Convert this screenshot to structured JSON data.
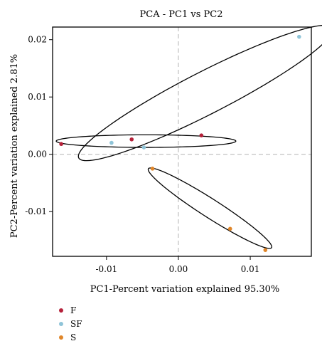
{
  "chart_data": {
    "type": "scatter",
    "title": "PCA - PC1 vs PC2",
    "xlabel": "PC1-Percent variation explained 95.30%",
    "ylabel": "PC2-Percent variation explained 2.81%",
    "xlim": [
      -0.0175,
      0.0185
    ],
    "ylim": [
      -0.0178,
      0.0222
    ],
    "xticks": [
      -0.01,
      0.0,
      0.01
    ],
    "xtick_labels": [
      "-0.01",
      "0.00",
      "0.01"
    ],
    "yticks": [
      -0.01,
      0.0,
      0.01,
      0.02
    ],
    "ytick_labels": [
      "-0.01",
      "0.00",
      "0.01",
      "0.02"
    ],
    "grid": false,
    "reference_lines": {
      "x": 0.0,
      "y": 0.0,
      "style": "dashed"
    },
    "legend_position": "bottom-left",
    "series": [
      {
        "name": "F",
        "color": "#b5213a",
        "points": [
          {
            "x": -0.0163,
            "y": 0.0018
          },
          {
            "x": -0.0065,
            "y": 0.0026
          },
          {
            "x": 0.0032,
            "y": 0.0033
          }
        ]
      },
      {
        "name": "SF",
        "color": "#8fc4d8",
        "points": [
          {
            "x": -0.0093,
            "y": 0.002
          },
          {
            "x": -0.0048,
            "y": 0.0012
          },
          {
            "x": 0.0168,
            "y": 0.0205
          }
        ]
      },
      {
        "name": "S",
        "color": "#e0862a",
        "points": [
          {
            "x": -0.0036,
            "y": -0.0025
          },
          {
            "x": 0.0072,
            "y": -0.013
          },
          {
            "x": 0.0121,
            "y": -0.0167
          }
        ]
      }
    ],
    "ellipses": [
      {
        "series": "F",
        "cx": -0.0045,
        "cy": 0.0023,
        "rx": 0.0125,
        "ry": 0.0011,
        "angle_deg": 0,
        "color": "#000000"
      },
      {
        "series": "SF",
        "cx": 0.0038,
        "cy": 0.0107,
        "rx": 0.021,
        "ry": 0.0035,
        "angle_deg": 33.0,
        "color": "#000000"
      },
      {
        "series": "S",
        "cx": 0.0044,
        "cy": -0.0094,
        "rx": 0.011,
        "ry": 0.0015,
        "angle_deg": -39.0,
        "color": "#000000"
      }
    ]
  }
}
